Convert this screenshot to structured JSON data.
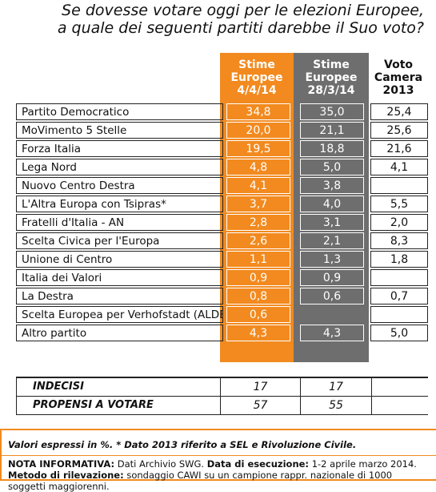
{
  "title": {
    "line1": "Se dovesse votare oggi per le elezioni Europee,",
    "line2": "a quale dei seguenti partiti darebbe il Suo voto?"
  },
  "colors": {
    "orange": "#f28a1f",
    "gray": "#6e6e6e"
  },
  "chart_data": {
    "type": "table",
    "columns": [
      {
        "lines": [
          "Stime",
          "Europee",
          "4/4/14"
        ]
      },
      {
        "lines": [
          "Stime",
          "Europee",
          "28/3/14"
        ]
      },
      {
        "lines": [
          "Voto",
          "Camera",
          "2013"
        ]
      }
    ],
    "rows": [
      {
        "party": "Partito Democratico",
        "values": [
          "34,8",
          "35,0",
          "25,4"
        ]
      },
      {
        "party": "MoVimento 5 Stelle",
        "values": [
          "20,0",
          "21,1",
          "25,6"
        ]
      },
      {
        "party": "Forza Italia",
        "values": [
          "19,5",
          "18,8",
          "21,6"
        ]
      },
      {
        "party": "Lega Nord",
        "values": [
          "4,8",
          "5,0",
          "4,1"
        ]
      },
      {
        "party": "Nuovo Centro Destra",
        "values": [
          "4,1",
          "3,8",
          ""
        ]
      },
      {
        "party": "L'Altra Europa con Tsipras*",
        "values": [
          "3,7",
          "4,0",
          "5,5"
        ]
      },
      {
        "party": "Fratelli d'Italia - AN",
        "values": [
          "2,8",
          "3,1",
          "2,0"
        ]
      },
      {
        "party": "Scelta Civica per l'Europa",
        "values": [
          "2,6",
          "2,1",
          "8,3"
        ]
      },
      {
        "party": "Unione di Centro",
        "values": [
          "1,1",
          "1,3",
          "1,8"
        ]
      },
      {
        "party": "Italia dei Valori",
        "values": [
          "0,9",
          "0,9",
          ""
        ]
      },
      {
        "party": "La Destra",
        "values": [
          "0,8",
          "0,6",
          "0,7"
        ]
      },
      {
        "party": "Scelta Europea per Verhofstadt (ALDE)",
        "values": [
          "0,6",
          "",
          ""
        ]
      },
      {
        "party": "Altro partito",
        "values": [
          "4,3",
          "4,3",
          "5,0"
        ]
      }
    ],
    "summary": [
      {
        "label": "INDECISI",
        "values": [
          "17",
          "17"
        ]
      },
      {
        "label": "PROPENSI A VOTARE",
        "values": [
          "57",
          "55"
        ]
      }
    ]
  },
  "notes": {
    "line1": "Valori espressi in %. * Dato 2013 riferito a SEL e Rivoluzione Civile.",
    "info_label": "NOTA INFORMATIVA:",
    "info_source": " Dati Archivio SWG. ",
    "exec_label": "Data di esecuzione:",
    "exec_value": " 1-2 aprile marzo 2014. ",
    "method_label": "Metodo di rilevazione:",
    "method_value": " sondaggio CAWI su un campione rappr. nazionale di 1000 soggetti maggiorenni."
  }
}
